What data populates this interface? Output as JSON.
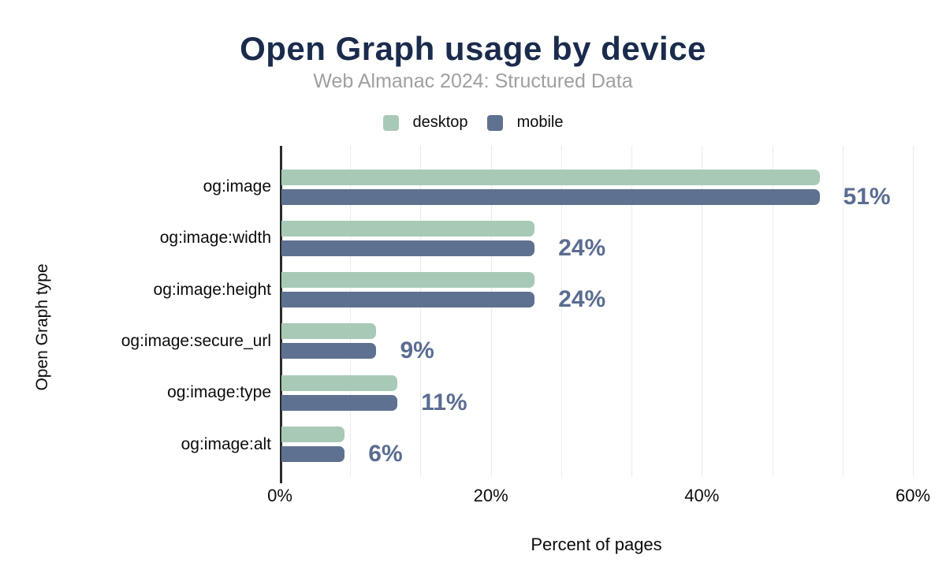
{
  "title": "Open Graph usage by device",
  "subtitle": "Web Almanac 2024: Structured Data",
  "legend": [
    {
      "label": "desktop",
      "color": "#a9c9b7"
    },
    {
      "label": "mobile",
      "color": "#5f7190"
    }
  ],
  "colors": {
    "background": "#ffffff",
    "title": "#1a2b4c",
    "subtitle": "#9e9fa1",
    "desktop_bar": "#a9c9b7",
    "mobile_bar": "#5f7190",
    "value_label": "#5a6c90",
    "axis_line": "#2b2b2b",
    "gridline": "#ebebf0",
    "text": "#0b0b0b"
  },
  "chart_data": {
    "type": "bar",
    "orientation": "horizontal",
    "title": "Open Graph usage by device",
    "subtitle": "Web Almanac 2024: Structured Data",
    "xlabel": "Percent of pages",
    "ylabel": "Open Graph type",
    "categories": [
      "og:image",
      "og:image:width",
      "og:image:height",
      "og:image:secure_url",
      "og:image:type",
      "og:image:alt"
    ],
    "series": [
      {
        "name": "desktop",
        "color": "#a9c9b7",
        "values": [
          51,
          24,
          24,
          9,
          11,
          6
        ]
      },
      {
        "name": "mobile",
        "color": "#5f7190",
        "values": [
          51,
          24,
          24,
          9,
          11,
          6
        ]
      }
    ],
    "value_labels": [
      "51%",
      "24%",
      "24%",
      "9%",
      "11%",
      "6%"
    ],
    "x_ticks": [
      "0%",
      "20%",
      "40%",
      "60%"
    ],
    "x_tick_values": [
      0,
      20,
      40,
      60
    ],
    "xlim": [
      0,
      60
    ],
    "grid": "vertical, minor gridlines every 6.67%",
    "legend_position": "top center"
  }
}
